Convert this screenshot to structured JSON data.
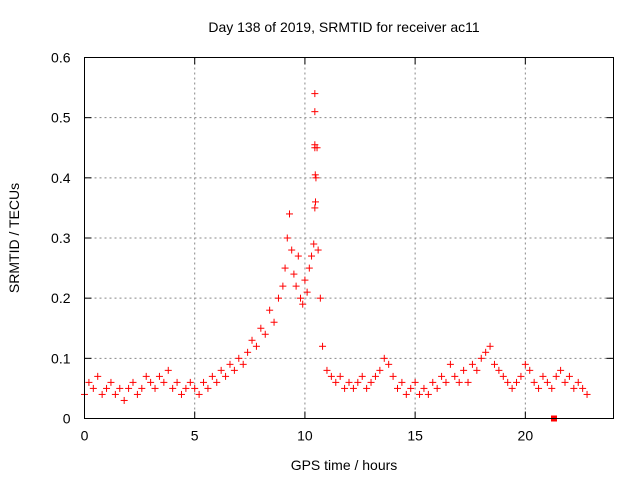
{
  "chart_data": {
    "type": "scatter",
    "title": "Day 138 of 2019, SRMTID for receiver ac11",
    "xlabel": "GPS time / hours",
    "ylabel": "SRMTID / TECUs",
    "xlim": [
      0,
      24
    ],
    "ylim": [
      0,
      0.6
    ],
    "xticks": [
      0,
      5,
      10,
      15,
      20
    ],
    "xtick_labels": [
      "0",
      "5",
      "10",
      "15",
      "20"
    ],
    "yticks": [
      0,
      0.1,
      0.2,
      0.3,
      0.4,
      0.5,
      0.6
    ],
    "ytick_labels": [
      "0",
      "0.1",
      "0.2",
      "0.3",
      "0.4",
      "0.5",
      "0.6"
    ],
    "grid": true,
    "marker": "+",
    "series": [
      {
        "name": "SRMTID",
        "color": "#ff0000",
        "x": [
          0.0,
          0.2,
          0.4,
          0.6,
          0.8,
          1.0,
          1.2,
          1.4,
          1.6,
          1.8,
          2.0,
          2.2,
          2.4,
          2.6,
          2.8,
          3.0,
          3.2,
          3.4,
          3.6,
          3.8,
          4.0,
          4.2,
          4.4,
          4.6,
          4.8,
          5.0,
          5.2,
          5.4,
          5.6,
          5.8,
          6.0,
          6.2,
          6.4,
          6.6,
          6.8,
          7.0,
          7.2,
          7.4,
          7.6,
          7.8,
          8.0,
          8.2,
          8.4,
          8.6,
          8.8,
          9.0,
          9.1,
          9.2,
          9.3,
          9.4,
          9.5,
          9.6,
          9.7,
          9.8,
          9.9,
          10.0,
          10.1,
          10.2,
          10.3,
          10.4,
          10.45,
          10.5,
          10.55,
          10.6,
          10.7,
          10.8,
          11.0,
          11.2,
          11.4,
          11.6,
          11.8,
          12.0,
          12.2,
          12.4,
          12.6,
          12.8,
          13.0,
          13.2,
          13.4,
          13.6,
          13.8,
          14.0,
          14.2,
          14.4,
          14.6,
          14.8,
          15.0,
          15.2,
          15.4,
          15.6,
          15.8,
          16.0,
          16.2,
          16.4,
          16.6,
          16.8,
          17.0,
          17.2,
          17.4,
          17.6,
          17.8,
          18.0,
          18.2,
          18.4,
          18.6,
          18.8,
          19.0,
          19.2,
          19.4,
          19.6,
          19.8,
          20.0,
          20.2,
          20.4,
          20.6,
          20.8,
          21.0,
          21.2,
          21.4,
          21.6,
          21.8,
          22.0,
          22.2,
          22.4,
          22.6,
          22.8
        ],
        "y": [
          0.04,
          0.06,
          0.05,
          0.07,
          0.04,
          0.05,
          0.06,
          0.04,
          0.05,
          0.03,
          0.05,
          0.06,
          0.04,
          0.05,
          0.07,
          0.06,
          0.05,
          0.07,
          0.06,
          0.08,
          0.05,
          0.06,
          0.04,
          0.05,
          0.06,
          0.05,
          0.04,
          0.06,
          0.05,
          0.07,
          0.06,
          0.08,
          0.07,
          0.09,
          0.08,
          0.1,
          0.09,
          0.11,
          0.13,
          0.12,
          0.15,
          0.14,
          0.18,
          0.16,
          0.2,
          0.22,
          0.25,
          0.3,
          0.34,
          0.28,
          0.24,
          0.22,
          0.27,
          0.2,
          0.19,
          0.23,
          0.21,
          0.25,
          0.27,
          0.29,
          0.35,
          0.4,
          0.45,
          0.28,
          0.2,
          0.12,
          0.08,
          0.07,
          0.06,
          0.07,
          0.05,
          0.06,
          0.05,
          0.06,
          0.07,
          0.05,
          0.06,
          0.07,
          0.08,
          0.1,
          0.09,
          0.07,
          0.05,
          0.06,
          0.04,
          0.05,
          0.06,
          0.04,
          0.05,
          0.04,
          0.06,
          0.05,
          0.07,
          0.06,
          0.09,
          0.07,
          0.06,
          0.08,
          0.06,
          0.09,
          0.08,
          0.1,
          0.11,
          0.12,
          0.09,
          0.08,
          0.07,
          0.06,
          0.05,
          0.06,
          0.07,
          0.09,
          0.08,
          0.06,
          0.05,
          0.07,
          0.06,
          0.05,
          0.07,
          0.08,
          0.06,
          0.07,
          0.05,
          0.06,
          0.05,
          0.04
        ]
      }
    ],
    "outliers": {
      "x": [
        10.45,
        10.45,
        10.45,
        10.45,
        10.47,
        10.48
      ],
      "y": [
        0.54,
        0.51,
        0.455,
        0.45,
        0.405,
        0.36
      ]
    },
    "square_marker": {
      "x": 21.3,
      "y": 0.0
    }
  }
}
